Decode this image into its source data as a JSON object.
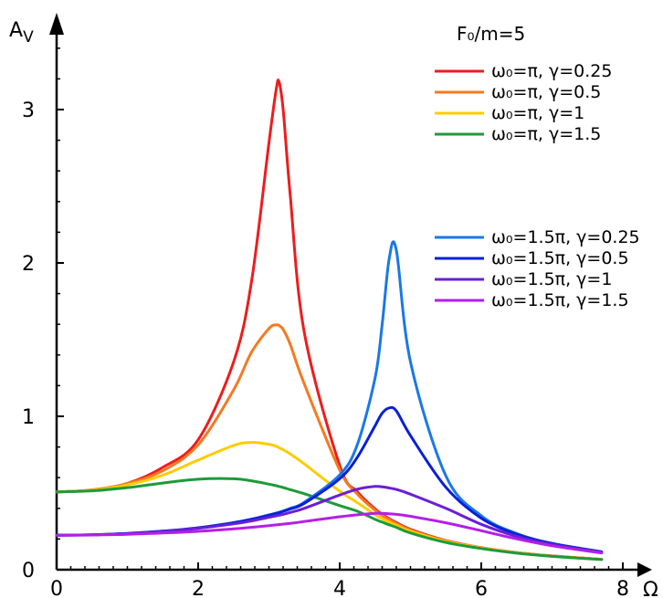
{
  "chart_data": {
    "type": "line",
    "annotation_text": "F₀/m=5",
    "ylabel": "A",
    "ylabel_sub": "V",
    "xlabel": "Ω",
    "xlim": [
      0,
      8
    ],
    "ylim": [
      0,
      3.5
    ],
    "x_ticks": [
      0,
      2,
      4,
      6,
      8
    ],
    "x_tick_labels": [
      "0",
      "2",
      "4",
      "6",
      "8"
    ],
    "y_ticks": [
      0,
      1,
      2,
      3
    ],
    "y_tick_labels": [
      "0",
      "1",
      "2",
      "3"
    ],
    "grid": false,
    "legend_position": "top-right",
    "x": [
      0.0,
      0.5,
      1.0,
      1.5,
      2.0,
      2.5,
      2.75,
      3.0,
      3.1,
      3.14,
      3.2,
      3.3,
      3.5,
      4.0,
      4.25,
      4.5,
      4.6,
      4.7,
      4.8,
      5.0,
      5.5,
      6.0,
      6.5,
      7.0,
      7.7
    ],
    "series": [
      {
        "name": "ω₀=π, γ=0.25",
        "color": "#ee1c1c",
        "values": [
          0.507,
          0.52,
          0.563,
          0.667,
          0.847,
          1.354,
          1.866,
          2.783,
          3.125,
          3.184,
          3.004,
          2.443,
          1.544,
          0.68,
          0.508,
          0.396,
          0.362,
          0.333,
          0.307,
          0.263,
          0.19,
          0.144,
          0.112,
          0.09,
          0.068
        ]
      },
      {
        "name": "ω₀=π, γ=0.5",
        "color": "#f47a20",
        "values": [
          0.507,
          0.52,
          0.562,
          0.645,
          0.814,
          1.172,
          1.414,
          1.572,
          1.596,
          1.592,
          1.567,
          1.469,
          1.21,
          0.649,
          0.493,
          0.387,
          0.354,
          0.327,
          0.302,
          0.259,
          0.188,
          0.143,
          0.111,
          0.089,
          0.068
        ]
      },
      {
        "name": "ω₀=π, γ=1",
        "color": "#ffcc00",
        "values": [
          0.507,
          0.518,
          0.553,
          0.616,
          0.715,
          0.81,
          0.83,
          0.818,
          0.805,
          0.796,
          0.782,
          0.755,
          0.689,
          0.512,
          0.437,
          0.358,
          0.333,
          0.31,
          0.289,
          0.25,
          0.184,
          0.141,
          0.11,
          0.088,
          0.067
        ]
      },
      {
        "name": "ω₀=π, γ=1.5",
        "color": "#1e9a3a",
        "values": [
          0.507,
          0.514,
          0.535,
          0.565,
          0.59,
          0.593,
          0.58,
          0.558,
          0.548,
          0.543,
          0.536,
          0.522,
          0.495,
          0.418,
          0.381,
          0.328,
          0.31,
          0.292,
          0.276,
          0.239,
          0.178,
          0.138,
          0.108,
          0.087,
          0.066
        ]
      },
      {
        "name": "ω₀=1.5π, γ=0.25",
        "color": "#1a78e8",
        "values": [
          0.225,
          0.228,
          0.237,
          0.251,
          0.273,
          0.307,
          0.329,
          0.357,
          0.369,
          0.374,
          0.383,
          0.4,
          0.44,
          0.618,
          0.817,
          1.252,
          1.6,
          2.033,
          2.083,
          1.354,
          0.611,
          0.352,
          0.236,
          0.172,
          0.117
        ]
      },
      {
        "name": "ω₀=1.5π, γ=0.5",
        "color": "#0a1fd6",
        "values": [
          0.225,
          0.228,
          0.236,
          0.251,
          0.273,
          0.306,
          0.328,
          0.355,
          0.367,
          0.371,
          0.38,
          0.396,
          0.433,
          0.593,
          0.734,
          0.939,
          1.02,
          1.055,
          1.035,
          0.874,
          0.537,
          0.336,
          0.231,
          0.17,
          0.116
        ]
      },
      {
        "name": "ω₀=1.5π, γ=1",
        "color": "#6a1fd6",
        "values": [
          0.225,
          0.227,
          0.235,
          0.249,
          0.269,
          0.299,
          0.318,
          0.341,
          0.351,
          0.355,
          0.361,
          0.373,
          0.4,
          0.487,
          0.525,
          0.543,
          0.54,
          0.533,
          0.523,
          0.492,
          0.4,
          0.296,
          0.217,
          0.164,
          0.113
        ]
      },
      {
        "name": "ω₀=1.5π, γ=1.5",
        "color": "#b51ee8",
        "values": [
          0.225,
          0.226,
          0.231,
          0.239,
          0.25,
          0.266,
          0.276,
          0.287,
          0.292,
          0.294,
          0.297,
          0.302,
          0.314,
          0.345,
          0.358,
          0.368,
          0.367,
          0.365,
          0.361,
          0.348,
          0.306,
          0.254,
          0.201,
          0.156,
          0.109
        ]
      }
    ]
  }
}
